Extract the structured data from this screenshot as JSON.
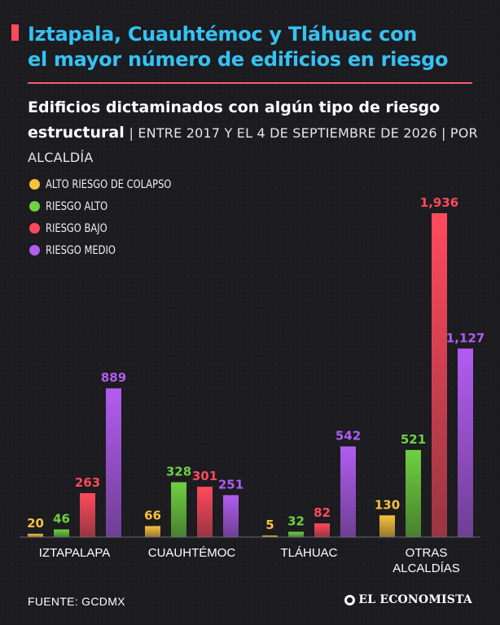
{
  "headline": {
    "line1": "Iztapala, Cuauhtémoc y Tláhuac con",
    "line2": "el mayor número de edificios en riesgo"
  },
  "subtitle": {
    "bold_part": "Edificios dictaminados con algún tipo de riesgo estructural",
    "rest": "| ENTRE 2017 Y EL 4 DE SEPTIEMBRE DE 2026 | POR ALCALDÍA"
  },
  "colors": {
    "background": "#1b1b20",
    "headline": "#36c2f2",
    "accent": "#ff4a5c"
  },
  "chart_data": {
    "type": "bar",
    "categories": [
      "IZTAPALAPA",
      "CUAUHTÉMOC",
      "TLÁHUAC",
      "OTRAS ALCALDÍAS"
    ],
    "series": [
      {
        "name": "ALTO RIESGO DE COLAPSO",
        "color": "#f5c23b",
        "values": [
          20,
          66,
          5,
          130
        ],
        "labels": [
          "20",
          "66",
          "5",
          "130"
        ]
      },
      {
        "name": "RIESGO ALTO",
        "color": "#6ed13f",
        "values": [
          46,
          328,
          32,
          521
        ],
        "labels": [
          "46",
          "328",
          "32",
          "521"
        ]
      },
      {
        "name": "RIESGO BAJO",
        "color": "#ff4a5c",
        "values": [
          263,
          301,
          82,
          1936
        ],
        "labels": [
          "263",
          "301",
          "82",
          "1,936"
        ]
      },
      {
        "name": "RIESGO MEDIO",
        "color": "#b25cf0",
        "values": [
          889,
          251,
          542,
          1127
        ],
        "labels": [
          "889",
          "251",
          "542",
          "1,127"
        ]
      }
    ],
    "ylim": [
      0,
      1936
    ],
    "grid": false,
    "legend": "top-left"
  },
  "footer": {
    "source": "FUENTE: GCDMX",
    "brand": "EL ECONOMISTA"
  }
}
